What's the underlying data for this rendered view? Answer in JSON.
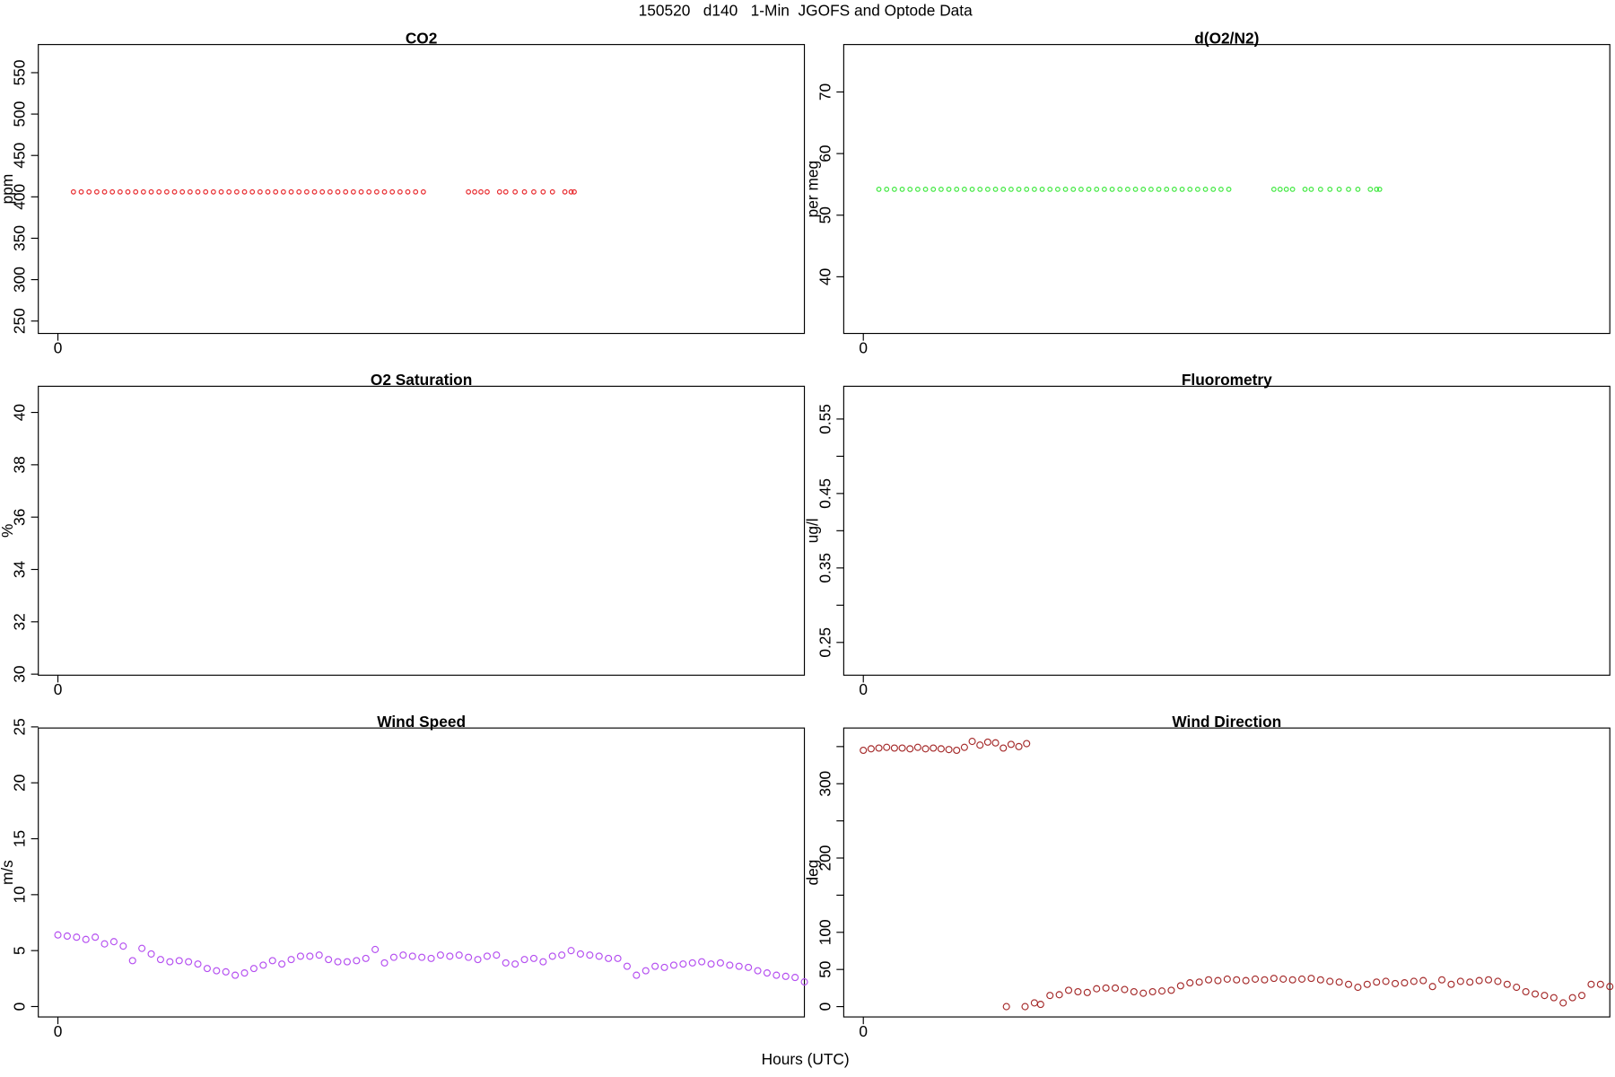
{
  "title": "150520   d140   1-Min  JGOFS and Optode Data",
  "xlabel": "Hours (UTC)",
  "chart_data": [
    {
      "type": "scatter",
      "title": "CO2",
      "ylabel": "ppm",
      "color": "#e8282c",
      "xlim": [
        -0.63,
        24
      ],
      "xticks": [
        0
      ],
      "ylim": [
        235,
        584
      ],
      "yticks": [
        250,
        300,
        350,
        400,
        450,
        500,
        550
      ],
      "x": [
        0.5,
        0.75,
        1,
        1.25,
        1.5,
        1.75,
        2,
        2.25,
        2.5,
        2.75,
        3,
        3.25,
        3.5,
        3.75,
        4,
        4.25,
        4.5,
        4.75,
        5,
        5.25,
        5.5,
        5.75,
        6,
        6.25,
        6.5,
        6.75,
        7,
        7.25,
        7.5,
        7.75,
        8,
        8.25,
        8.5,
        8.75,
        9,
        9.25,
        9.5,
        9.75,
        10,
        10.25,
        10.5,
        10.75,
        11,
        11.25,
        11.5,
        11.75,
        13.2,
        13.4,
        13.6,
        13.8,
        14.2,
        14.4,
        14.7,
        15.0,
        15.3,
        15.6,
        15.9,
        16.3,
        16.5,
        16.6
      ],
      "values": [
        406,
        406,
        406,
        406,
        406,
        406,
        406,
        406,
        406,
        406,
        406,
        406,
        406,
        406,
        406,
        406,
        406,
        406,
        406,
        406,
        406,
        406,
        406,
        406,
        406,
        406,
        406,
        406,
        406,
        406,
        406,
        406,
        406,
        406,
        406,
        406,
        406,
        406,
        406,
        406,
        406,
        406,
        406,
        406,
        406,
        406,
        406,
        406,
        406,
        406,
        406,
        406,
        406,
        406,
        406,
        406,
        406,
        406,
        406,
        406
      ]
    },
    {
      "type": "scatter",
      "title": "d(O2/N2)",
      "ylabel": "per meg",
      "color": "#3ee83e",
      "xlim": [
        -0.63,
        24
      ],
      "xticks": [
        0
      ],
      "ylim": [
        30.8,
        77.7
      ],
      "yticks": [
        40,
        50,
        60,
        70
      ],
      "x": [
        0.5,
        0.75,
        1,
        1.25,
        1.5,
        1.75,
        2,
        2.25,
        2.5,
        2.75,
        3,
        3.25,
        3.5,
        3.75,
        4,
        4.25,
        4.5,
        4.75,
        5,
        5.25,
        5.5,
        5.75,
        6,
        6.25,
        6.5,
        6.75,
        7,
        7.25,
        7.5,
        7.75,
        8,
        8.25,
        8.5,
        8.75,
        9,
        9.25,
        9.5,
        9.75,
        10,
        10.25,
        10.5,
        10.75,
        11,
        11.25,
        11.5,
        11.75,
        13.2,
        13.4,
        13.6,
        13.8,
        14.2,
        14.4,
        14.7,
        15.0,
        15.3,
        15.6,
        15.9,
        16.3,
        16.5,
        16.6
      ],
      "values": [
        54.2,
        54.2,
        54.2,
        54.2,
        54.2,
        54.2,
        54.2,
        54.2,
        54.2,
        54.2,
        54.2,
        54.2,
        54.2,
        54.2,
        54.2,
        54.2,
        54.2,
        54.2,
        54.2,
        54.2,
        54.2,
        54.2,
        54.2,
        54.2,
        54.2,
        54.2,
        54.2,
        54.2,
        54.2,
        54.2,
        54.2,
        54.2,
        54.2,
        54.2,
        54.2,
        54.2,
        54.2,
        54.2,
        54.2,
        54.2,
        54.2,
        54.2,
        54.2,
        54.2,
        54.2,
        54.2,
        54.2,
        54.2,
        54.2,
        54.2,
        54.2,
        54.2,
        54.2,
        54.2,
        54.2,
        54.2,
        54.2,
        54.2,
        54.2,
        54.2
      ]
    },
    {
      "type": "scatter",
      "title": "O2 Saturation",
      "ylabel": "%",
      "color": "#000000",
      "xlim": [
        -0.63,
        24
      ],
      "xticks": [
        0
      ],
      "ylim": [
        29.96,
        41
      ],
      "yticks": [
        30,
        32,
        34,
        36,
        38,
        40
      ],
      "x": [],
      "values": []
    },
    {
      "type": "scatter",
      "title": "Fluorometry",
      "ylabel": "ug/l",
      "color": "#000000",
      "xlim": [
        -0.63,
        24
      ],
      "xticks": [
        0
      ],
      "ylim": [
        0.206,
        0.594
      ],
      "yticks": [
        0.25,
        {
          "value": 0.3,
          "label": null
        },
        0.35,
        {
          "value": 0.4,
          "label": null
        },
        0.45,
        {
          "value": 0.5,
          "label": null
        },
        0.55
      ],
      "x": [],
      "values": []
    },
    {
      "type": "scatter",
      "title": "Wind Speed",
      "ylabel": "m/s",
      "color": "#b44ef0",
      "xlim": [
        -0.63,
        24
      ],
      "xticks": [
        0
      ],
      "ylim": [
        -0.93,
        24.9
      ],
      "yticks": [
        0,
        5,
        10,
        15,
        20,
        25
      ],
      "x": [
        0,
        0.3,
        0.6,
        0.9,
        1.2,
        1.5,
        1.8,
        2.1,
        2.4,
        2.7,
        3.0,
        3.3,
        3.6,
        3.9,
        4.2,
        4.5,
        4.8,
        5.1,
        5.4,
        5.7,
        6.0,
        6.3,
        6.6,
        6.9,
        7.2,
        7.5,
        7.8,
        8.1,
        8.4,
        8.7,
        9.0,
        9.3,
        9.6,
        9.9,
        10.2,
        10.5,
        10.8,
        11.1,
        11.4,
        11.7,
        12.0,
        12.3,
        12.6,
        12.9,
        13.2,
        13.5,
        13.8,
        14.1,
        14.4,
        14.7,
        15.0,
        15.3,
        15.6,
        15.9,
        16.2,
        16.5,
        16.8,
        17.1,
        17.4,
        17.7,
        18.0,
        18.3,
        18.6,
        18.9,
        19.2,
        19.5,
        19.8,
        20.1,
        20.4,
        20.7,
        21.0,
        21.3,
        21.6,
        21.9,
        22.2,
        22.5,
        22.8,
        23.1,
        23.4,
        23.7,
        24.0
      ],
      "values": [
        6.4,
        6.3,
        6.2,
        6.0,
        6.2,
        5.6,
        5.8,
        5.4,
        4.1,
        5.2,
        4.7,
        4.2,
        4.0,
        4.1,
        4.0,
        3.8,
        3.4,
        3.2,
        3.1,
        2.8,
        3.0,
        3.4,
        3.7,
        4.1,
        3.8,
        4.2,
        4.5,
        4.5,
        4.6,
        4.2,
        4.0,
        4.0,
        4.1,
        4.3,
        5.1,
        3.9,
        4.4,
        4.6,
        4.5,
        4.4,
        4.3,
        4.6,
        4.5,
        4.6,
        4.4,
        4.2,
        4.5,
        4.6,
        3.9,
        3.8,
        4.2,
        4.3,
        4.0,
        4.5,
        4.6,
        5.0,
        4.7,
        4.6,
        4.5,
        4.3,
        4.3,
        3.6,
        2.8,
        3.2,
        3.6,
        3.5,
        3.7,
        3.8,
        3.9,
        4.0,
        3.8,
        3.9,
        3.7,
        3.6,
        3.5,
        3.2,
        3.0,
        2.8,
        2.7,
        2.6,
        2.2
      ]
    },
    {
      "type": "scatter",
      "title": "Wind Direction",
      "ylabel": "deg",
      "color": "#a52a2a",
      "xlim": [
        -0.63,
        24
      ],
      "xticks": [
        0
      ],
      "ylim": [
        -13.9,
        375
      ],
      "yticks": [
        0,
        50,
        100,
        {
          "value": 150,
          "label": null
        },
        200,
        {
          "value": 250,
          "label": null
        },
        300,
        {
          "value": 350,
          "label": null
        }
      ],
      "x": [
        0,
        0.25,
        0.5,
        0.75,
        1,
        1.25,
        1.5,
        1.75,
        2,
        2.25,
        2.5,
        2.75,
        3,
        3.25,
        3.5,
        3.75,
        4,
        4.25,
        4.5,
        4.75,
        5,
        5.25,
        4.6,
        5.2,
        5.5,
        5.7,
        6.0,
        6.3,
        6.6,
        6.9,
        7.2,
        7.5,
        7.8,
        8.1,
        8.4,
        8.7,
        9.0,
        9.3,
        9.6,
        9.9,
        10.2,
        10.5,
        10.8,
        11.1,
        11.4,
        11.7,
        12.0,
        12.3,
        12.6,
        12.9,
        13.2,
        13.5,
        13.8,
        14.1,
        14.4,
        14.7,
        15.0,
        15.3,
        15.6,
        15.9,
        16.2,
        16.5,
        16.8,
        17.1,
        17.4,
        17.7,
        18.0,
        18.3,
        18.6,
        18.9,
        19.2,
        19.5,
        19.8,
        20.1,
        20.4,
        20.7,
        21.0,
        21.3,
        21.6,
        21.9,
        22.2,
        22.5,
        22.8,
        23.1,
        23.4,
        23.7,
        24.0
      ],
      "values": [
        345,
        347,
        348,
        349,
        348,
        348,
        347,
        349,
        347,
        348,
        347,
        346,
        345,
        349,
        357,
        352,
        356,
        355,
        348,
        353,
        350,
        354,
        0,
        0,
        5,
        3,
        15,
        16,
        22,
        20,
        19,
        24,
        25,
        25,
        23,
        20,
        18,
        20,
        21,
        22,
        28,
        32,
        33,
        36,
        35,
        37,
        36,
        35,
        37,
        36,
        38,
        37,
        36,
        37,
        38,
        36,
        34,
        33,
        30,
        26,
        30,
        33,
        34,
        31,
        32,
        34,
        35,
        27,
        36,
        30,
        34,
        33,
        35,
        36,
        34,
        30,
        26,
        20,
        17,
        15,
        12,
        5,
        12,
        15,
        30,
        30,
        27
      ]
    }
  ]
}
